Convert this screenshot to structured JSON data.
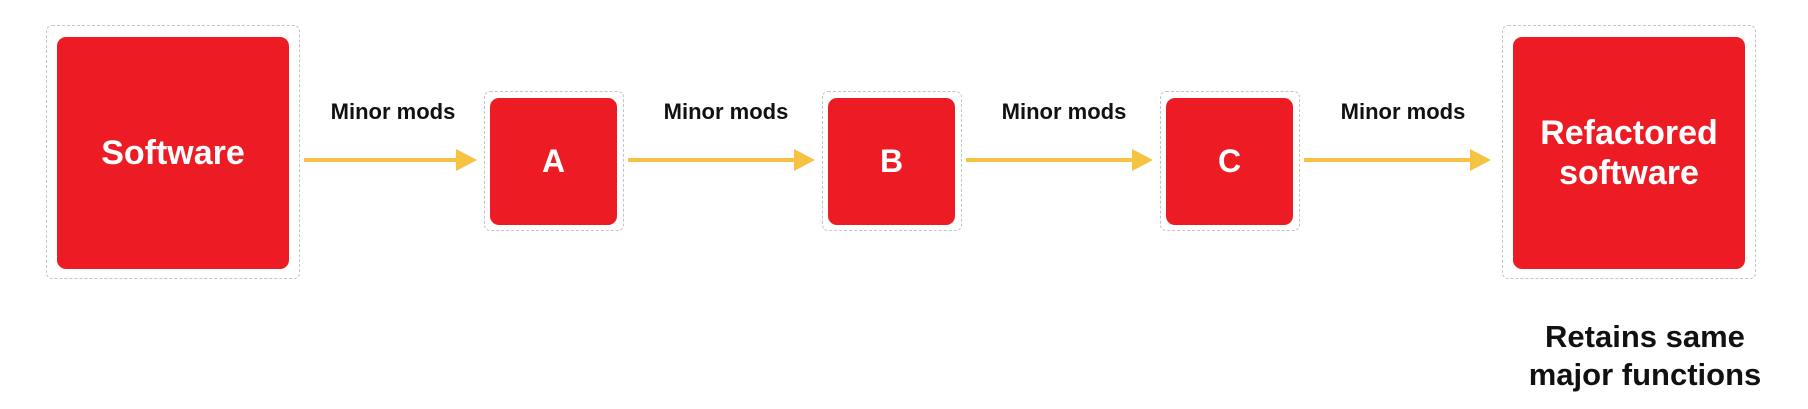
{
  "nodes": {
    "software": "Software",
    "a": "A",
    "b": "B",
    "c": "C",
    "refactored_line1": "Refactored",
    "refactored_line2": "software"
  },
  "edges": {
    "e1": "Minor mods",
    "e2": "Minor mods",
    "e3": "Minor mods",
    "e4": "Minor mods"
  },
  "caption": {
    "line1": "Retains same",
    "line2": "major functions"
  },
  "colors": {
    "node_fill": "#ed1c24",
    "arrow": "#f5c242",
    "frame": "#c4c4c4"
  }
}
